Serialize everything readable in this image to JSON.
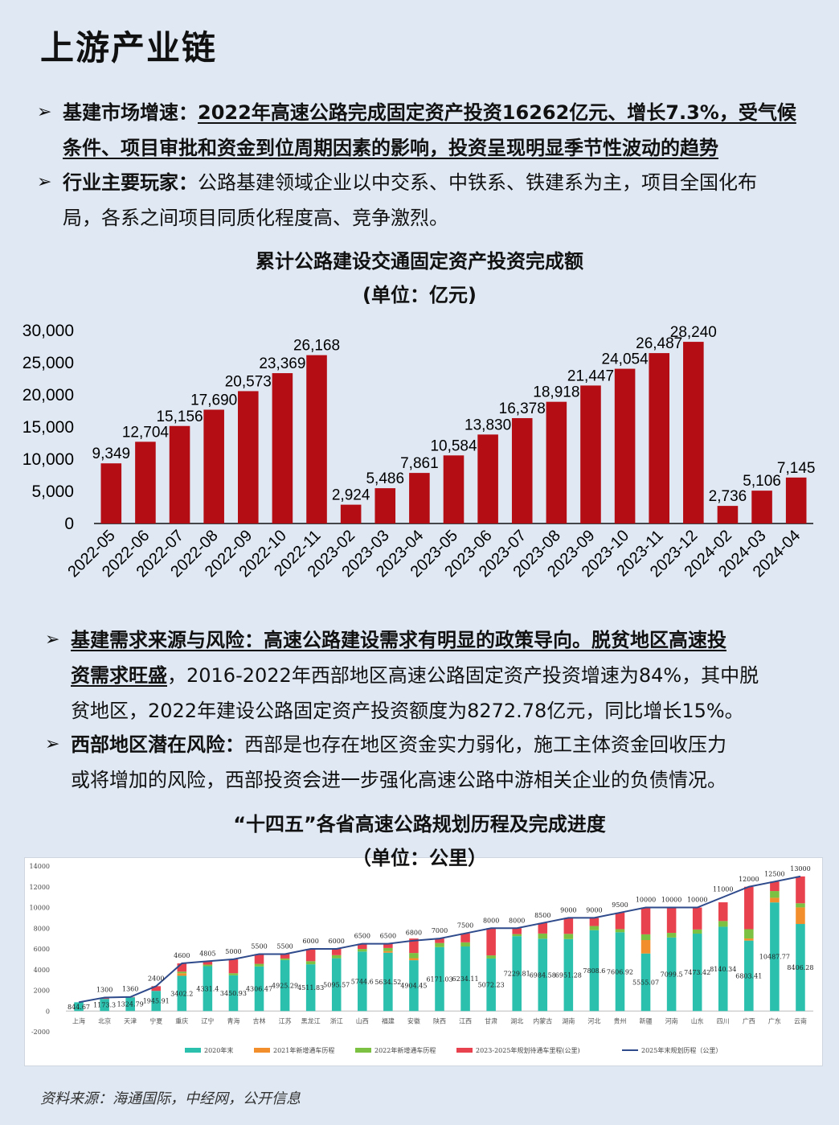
{
  "page": {
    "title": "上游产业链",
    "source": "资料来源：海通国际，中经网，公开信息"
  },
  "bullets": {
    "b1": {
      "lead": "基建市场增速：",
      "ul_line1": "2022年高速公路完成固定资产投资16262亿元、增长7.3%，受气候",
      "ul_line2": "条件、项目审批和资金到位周期因素的影响，投资呈现明显季节性波动的趋势"
    },
    "b2": {
      "lead": "行业主要玩家：",
      "text_line1": "公路基建领域企业以中交系、中铁系、铁建系为主，项目全国化布",
      "text_line2": "局，各系之间项目同质化程度高、竞争激烈。"
    },
    "b3": {
      "ul_line1": "基建需求来源与风险：高速公路建设需求有明显的政策导向。脱贫地区高速投",
      "ul_line2": "资需求旺盛",
      "text_line2": "，2016-2022年西部地区高速公路固定资产投资增速为84%，其中脱",
      "text_line3": "贫地区，2022年建设公路固定资产投资额度为8272.78亿元，同比增长15%。"
    },
    "b4": {
      "lead": "西部地区潜在风险：",
      "text_line1": "西部是也存在地区资金实力弱化，施工主体资金回收压力",
      "text_line2": "或将增加的风险，西部投资会进一步强化高速公路中游相关企业的负债情况。"
    }
  },
  "chart_data": [
    {
      "type": "bar",
      "title": "累计公路建设交通固定资产投资完成额",
      "subtitle": "(单位：亿元)",
      "categories": [
        "2022-05",
        "2022-06",
        "2022-07",
        "2022-08",
        "2022-09",
        "2022-10",
        "2022-11",
        "2023-02",
        "2023-03",
        "2023-04",
        "2023-05",
        "2023-06",
        "2023-07",
        "2023-08",
        "2023-09",
        "2023-10",
        "2023-11",
        "2023-12",
        "2024-02",
        "2024-03",
        "2024-04"
      ],
      "values": [
        9349,
        12704,
        15156,
        17690,
        20573,
        23369,
        26168,
        2924,
        5486,
        7861,
        10584,
        13830,
        16378,
        18918,
        21447,
        24054,
        26487,
        28240,
        2736,
        5106,
        7145
      ],
      "value_labels": [
        "9,349",
        "12,704",
        "15,156",
        "17,690",
        "20,573",
        "23,369",
        "26,168",
        "2,924",
        "5,486",
        "7,861",
        "10,584",
        "13,830",
        "16,378",
        "18,918",
        "21,447",
        "24,054",
        "26,487",
        "28,240",
        "2,736",
        "5,106",
        "7,145"
      ],
      "ylim": [
        0,
        30000
      ],
      "yticks": [
        "0",
        "5,000",
        "10,000",
        "15,000",
        "20,000",
        "25,000",
        "30,000"
      ],
      "bar_color": "#b40d14",
      "grid": false
    },
    {
      "type": "bar",
      "stacked": true,
      "title": "“十四五”各省高速公路规划历程及完成进度",
      "subtitle": "（单位：公里）",
      "categories": [
        "上海",
        "北京",
        "天津",
        "宁夏",
        "重庆",
        "辽宁",
        "青海",
        "吉林",
        "江苏",
        "黑龙江",
        "浙江",
        "山西",
        "福建",
        "安徽",
        "陕西",
        "江西",
        "甘肃",
        "湖北",
        "内蒙古",
        "湖南",
        "河北",
        "贵州",
        "新疆",
        "河南",
        "山东",
        "四川",
        "广西",
        "广东",
        "云南"
      ],
      "ylim": [
        -2000,
        14000
      ],
      "yticks": [
        "-2000",
        "0",
        "2000",
        "4000",
        "6000",
        "8000",
        "10000",
        "12000",
        "14000"
      ],
      "series": [
        {
          "name": "2020年末",
          "color": "#2bbfae",
          "values": [
            844.67,
            1173.3,
            1324.79,
            1945.91,
            3402.2,
            4331.4,
            3450.93,
            4306.47,
            4925.29,
            4511.83,
            5095.57,
            5744.6,
            5634.52,
            4904.45,
            6171.03,
            6234.11,
            5072.23,
            7229.81,
            6984.58,
            6951.28,
            7808.6,
            7606.92,
            5555.07,
            7099.5,
            7473.42,
            8140.34,
            6803.41,
            10487.77,
            8406.28
          ]
        },
        {
          "name": "2021年新增通车历程",
          "color": "#f28e2b",
          "values": [
            0,
            0,
            0,
            0,
            250,
            0,
            0,
            0,
            0,
            0,
            0,
            0,
            150,
            200,
            0,
            0,
            0,
            0,
            0,
            0,
            0,
            0,
            1300,
            0,
            0,
            0,
            200,
            450,
            1600
          ]
        },
        {
          "name": "2022年新增通车历程",
          "color": "#7cc142",
          "values": [
            0,
            0,
            0,
            0,
            150,
            150,
            200,
            250,
            150,
            300,
            300,
            250,
            300,
            500,
            400,
            400,
            300,
            200,
            500,
            500,
            400,
            300,
            550,
            450,
            400,
            550,
            900,
            650,
            400
          ]
        },
        {
          "name": "2023-2025年规划待通车里程(公里)",
          "color": "#e8424f",
          "values": [
            0,
            126.7,
            35.21,
            454.09,
            797.8,
            323.6,
            1349.07,
            943.53,
            424.71,
            1188.17,
            604.43,
            505.4,
            415.48,
            1395.55,
            428.97,
            865.89,
            2627.77,
            570.19,
            1015.42,
            1548.72,
            791.4,
            1593.08,
            2594.93,
            2450.5,
            2126.58,
            1809.66,
            4096.59,
            911.73,
            2593.72
          ]
        },
        {
          "name": "2025年末规划历程（公里）",
          "color": "#2f4b8c",
          "type": "line",
          "values": [
            844.67,
            1300,
            1360,
            2400,
            4600,
            4805,
            5000,
            5500,
            5500,
            6000,
            6000,
            6500,
            6500,
            6800,
            7000,
            7500,
            8000,
            8000,
            8500,
            9000,
            9000,
            9500,
            10000,
            10000,
            10000,
            11000,
            12000,
            12500,
            13000
          ]
        }
      ],
      "stack_labels": [
        "844.67",
        "1173.3",
        "1324.79",
        "1945.91",
        "3402.2",
        "4331.4",
        "3450.93",
        "4306.47",
        "4925.29",
        "4511.83",
        "5095.57",
        "5744.6",
        "5634.52",
        "4904.45",
        "6171.03",
        "6234.11",
        "5072.23",
        "7229.81",
        "6984.58",
        "6951.28",
        "7808.6",
        "7606.92",
        "5555.07",
        "7099.5",
        "7473.42",
        "8140.34",
        "6803.41",
        "10487.77",
        "8406.28"
      ],
      "line_labels": [
        "",
        "1300",
        "1360",
        "2400",
        "4600",
        "4805",
        "5000",
        "5500",
        "5500",
        "6000",
        "6000",
        "6500",
        "6500",
        "6800",
        "7000",
        "7500",
        "8000",
        "8000",
        "8500",
        "9000",
        "9000",
        "9500",
        "10000",
        "10000",
        "10000",
        "11000",
        "12000",
        "12500",
        "13000"
      ],
      "legend_position": "bottom",
      "grid": false
    }
  ]
}
